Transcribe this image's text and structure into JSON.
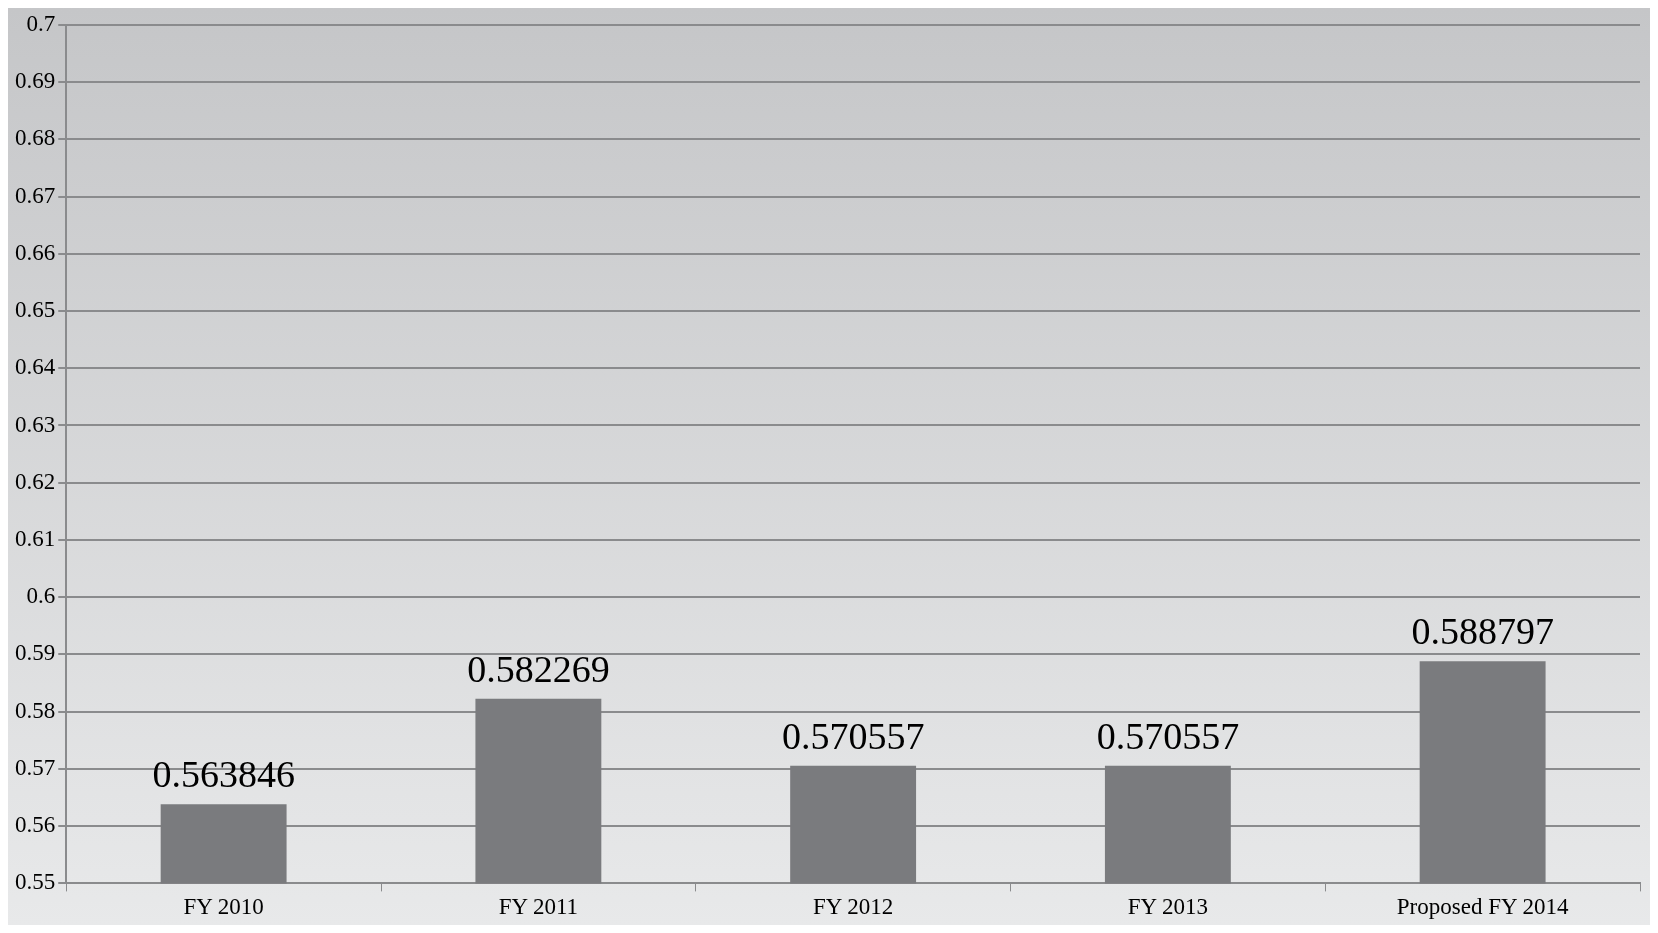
{
  "chart_data": {
    "type": "bar",
    "categories": [
      "FY 2010",
      "FY 2011",
      "FY 2012",
      "FY 2013",
      "Proposed FY 2014"
    ],
    "values": [
      0.563846,
      0.582269,
      0.570557,
      0.570557,
      0.588797
    ],
    "color": "#7a7b7e",
    "ylim": [
      0.55,
      0.7
    ],
    "yticks": [
      0.55,
      0.56,
      0.57,
      0.58,
      0.59,
      0.6,
      0.61,
      0.62,
      0.63,
      0.64,
      0.65,
      0.66,
      0.67,
      0.68,
      0.69,
      0.7
    ],
    "grid": "y",
    "data_labels": true,
    "legend": false
  }
}
